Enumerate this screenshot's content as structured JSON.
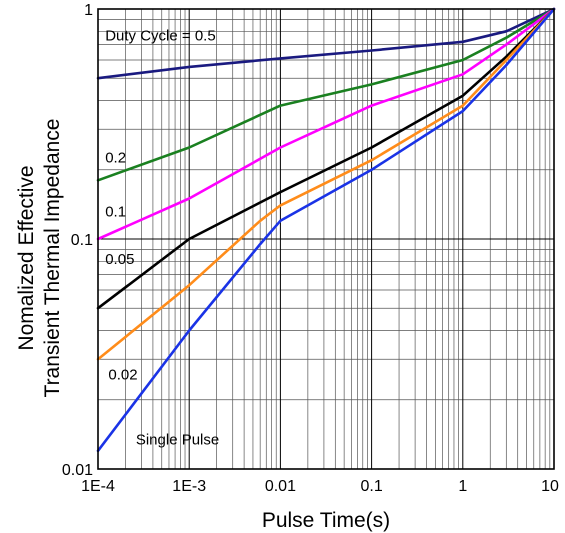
{
  "chart_data": {
    "type": "line",
    "title": "",
    "xlabel": "Pulse Time(s)",
    "ylabel_lines": [
      "Nomalized Effective",
      "Transient Thermal Impedance"
    ],
    "x_scale": "log",
    "y_scale": "log",
    "xlim": [
      0.0001,
      10
    ],
    "ylim": [
      0.01,
      1
    ],
    "x_ticks": [
      {
        "value": 0.0001,
        "label": "1E-4"
      },
      {
        "value": 0.001,
        "label": "1E-3"
      },
      {
        "value": 0.01,
        "label": "0.01"
      },
      {
        "value": 0.1,
        "label": "0.1"
      },
      {
        "value": 1,
        "label": "1"
      },
      {
        "value": 10,
        "label": "10"
      }
    ],
    "y_ticks": [
      {
        "value": 0.01,
        "label": "0.01"
      },
      {
        "value": 0.1,
        "label": "0.1"
      },
      {
        "value": 1,
        "label": "1"
      }
    ],
    "grid": true,
    "series": [
      {
        "name": "Duty Cycle = 0.5",
        "color": "#1a1a80",
        "x": [
          0.0001,
          0.001,
          0.01,
          0.1,
          1,
          3,
          10
        ],
        "y": [
          0.5,
          0.56,
          0.61,
          0.66,
          0.72,
          0.8,
          1.0
        ]
      },
      {
        "name": "0.2",
        "color": "#1a8020",
        "x": [
          0.0001,
          0.001,
          0.01,
          0.1,
          1,
          3,
          10
        ],
        "y": [
          0.18,
          0.25,
          0.38,
          0.47,
          0.6,
          0.75,
          1.0
        ]
      },
      {
        "name": "0.1",
        "color": "#ff00ff",
        "x": [
          0.0001,
          0.001,
          0.01,
          0.1,
          1,
          3,
          10
        ],
        "y": [
          0.1,
          0.15,
          0.25,
          0.38,
          0.52,
          0.7,
          1.0
        ]
      },
      {
        "name": "0.05",
        "color": "#000000",
        "x": [
          0.0001,
          0.001,
          0.01,
          0.1,
          1,
          3,
          10
        ],
        "y": [
          0.05,
          0.1,
          0.16,
          0.25,
          0.42,
          0.62,
          1.0
        ]
      },
      {
        "name": "0.02",
        "color": "#ff8c1a",
        "x": [
          0.0001,
          0.001,
          0.006,
          0.01,
          0.1,
          1,
          3,
          10
        ],
        "y": [
          0.03,
          0.063,
          0.12,
          0.14,
          0.22,
          0.38,
          0.6,
          1.0
        ]
      },
      {
        "name": "Single Pulse",
        "color": "#1a33e6",
        "x": [
          0.0001,
          0.001,
          0.006,
          0.01,
          0.1,
          1,
          3,
          10
        ],
        "y": [
          0.012,
          0.04,
          0.095,
          0.12,
          0.2,
          0.36,
          0.57,
          1.0
        ]
      }
    ],
    "annotations": [
      {
        "text": "Duty Cycle = 0.5",
        "x": 0.00012,
        "y": 0.73
      },
      {
        "text": "0.2",
        "x": 0.00012,
        "y": 0.215
      },
      {
        "text": "0.1",
        "x": 0.00012,
        "y": 0.125
      },
      {
        "text": "0.05",
        "x": 0.00012,
        "y": 0.078
      },
      {
        "text": "0.02",
        "x": 0.00013,
        "y": 0.0245
      },
      {
        "text": "Single Pulse",
        "x": 0.00026,
        "y": 0.0128
      }
    ]
  }
}
